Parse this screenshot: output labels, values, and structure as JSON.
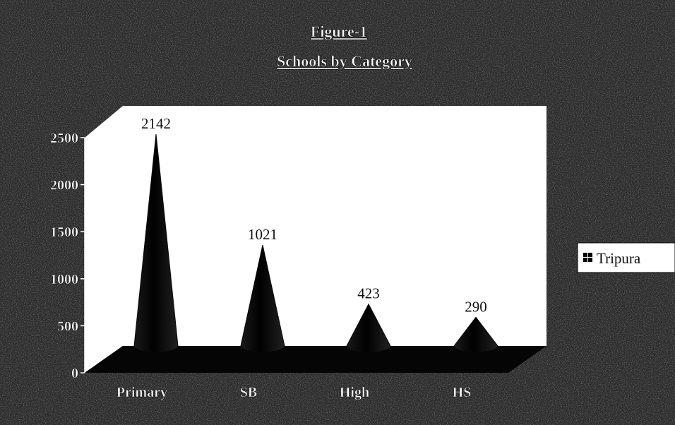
{
  "chart_data": {
    "type": "bar",
    "style": "3d-cone",
    "title": "Figure-1",
    "subtitle": "Schools by Category",
    "categories": [
      "Primary",
      "SB",
      "High",
      "HS"
    ],
    "series": [
      {
        "name": "Tripura",
        "values": [
          2142,
          1021,
          423,
          290
        ]
      }
    ],
    "data_labels": [
      "2142",
      "1021",
      "423",
      "290"
    ],
    "y_ticks": [
      "0",
      "500",
      "1000",
      "1500",
      "2000",
      "2500"
    ],
    "ylim": [
      0,
      2500
    ],
    "grid": false,
    "legend_position": "right",
    "colors": {
      "background": "#2b2b2b",
      "plot_wall": "#ffffff",
      "floor": "#050505",
      "cone": "#080808",
      "title_text": "#ffffff",
      "axis_text": "#ffffff",
      "data_label_text": "#111111"
    }
  }
}
